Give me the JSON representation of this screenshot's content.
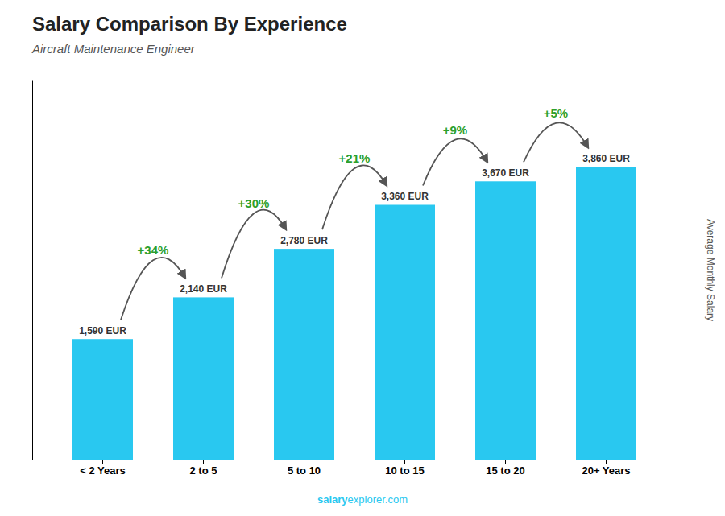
{
  "chart_data": {
    "type": "bar",
    "title": "Salary Comparison By Experience",
    "subtitle": "Aircraft Maintenance Engineer",
    "ylabel": "Average Monthly Salary",
    "categories": [
      "< 2 Years",
      "2 to 5",
      "5 to 10",
      "10 to 15",
      "15 to 20",
      "20+ Years"
    ],
    "values": [
      1590,
      2140,
      2780,
      3360,
      3670,
      3860
    ],
    "value_labels": [
      "1,590 EUR",
      "2,140 EUR",
      "2,780 EUR",
      "3,360 EUR",
      "3,670 EUR",
      "3,860 EUR"
    ],
    "data_labels": true,
    "color": "#29c8f0",
    "ylim": [
      0,
      5000
    ],
    "tick_labels": "x",
    "annotations": [
      "+34%",
      "+30%",
      "+21%",
      "+9%",
      "+5%"
    ],
    "source": [
      "salary",
      "explorer.com"
    ]
  }
}
